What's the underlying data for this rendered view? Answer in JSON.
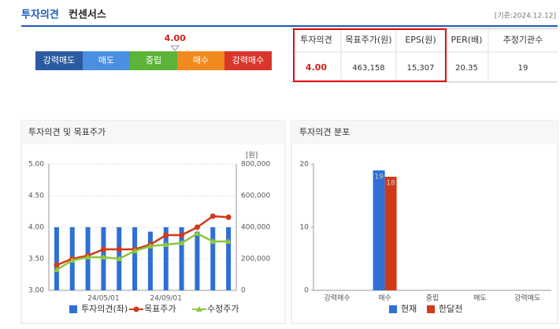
{
  "header": {
    "title": "투자의견",
    "subtitle": "컨센서스",
    "date": "[기준:2024.12.12]"
  },
  "opinion_scale": {
    "labels": [
      "강력매도",
      "매도",
      "중립",
      "매수",
      "강력매수"
    ],
    "colors": [
      "#2c5aa0",
      "#4a8fe0",
      "#5cb338",
      "#f08a1c",
      "#d9352a"
    ],
    "marker": {
      "value": 4,
      "label": "4.00"
    }
  },
  "table": {
    "headers": [
      "투자의견",
      "목표주가(원)",
      "EPS(원)",
      "PER(배)",
      "추정기관수"
    ],
    "rows": [
      [
        "4.00",
        "463,158",
        "15,307",
        "20.35",
        "19"
      ]
    ]
  },
  "chart_data": [
    {
      "type": "combo",
      "title": "투자의견 및 목표주가",
      "categories": [
        null,
        null,
        null,
        "24/05/01",
        null,
        null,
        null,
        "24/09/01",
        null,
        null,
        null,
        null
      ],
      "series": [
        {
          "name": "투자의견(좌)",
          "type": "bar",
          "color": "#2f6fd6",
          "values": [
            4,
            4,
            4,
            4,
            4,
            4,
            3.93,
            4,
            4,
            3.93,
            4,
            4
          ]
        },
        {
          "name": "목표주가",
          "type": "line",
          "marker": "circle",
          "axis": "y2",
          "color": "#d03a1a",
          "values": [
            160000,
            200000,
            220000,
            260000,
            260000,
            260000,
            290000,
            350000,
            350000,
            400000,
            470000,
            463158
          ]
        },
        {
          "name": "수정주가",
          "type": "line",
          "marker": "triangle",
          "axis": "y2",
          "color": "#8dc63f",
          "values": [
            130000,
            190000,
            210000,
            210000,
            200000,
            250000,
            280000,
            290000,
            300000,
            360000,
            310000,
            310000
          ]
        }
      ],
      "ylim": [
        3,
        5
      ],
      "yticks": [
        {
          "value": 3,
          "label": "3.00"
        },
        {
          "value": 3.5,
          "label": "3.50"
        },
        {
          "value": 4,
          "label": "4.00"
        },
        {
          "value": 4.5,
          "label": "4.50"
        },
        {
          "value": 5,
          "label": "5.00"
        }
      ],
      "y2lim": [
        0,
        800000
      ],
      "y2ticks": [
        0,
        {
          "value": 200000,
          "label": "200,000"
        },
        {
          "value": 400000,
          "label": "400,000"
        },
        {
          "value": 600000,
          "label": "600,000"
        },
        {
          "value": 800000,
          "label": "800,000"
        }
      ],
      "y2_label": "[원]",
      "grid": true
    },
    {
      "type": "bar",
      "title": "투자의견 분포",
      "categories": [
        "강력매수",
        "매수",
        "중립",
        "매도",
        "강력매도"
      ],
      "series": [
        {
          "name": "현재",
          "color": "#2f6fd6",
          "values": [
            0,
            19,
            0,
            0,
            0
          ]
        },
        {
          "name": "한달전",
          "color": "#d03a1a",
          "values": [
            0,
            18,
            0,
            0,
            0
          ]
        }
      ],
      "ylim": [
        0,
        20
      ],
      "yticks": [
        0,
        10,
        20
      ],
      "grid": false
    }
  ]
}
